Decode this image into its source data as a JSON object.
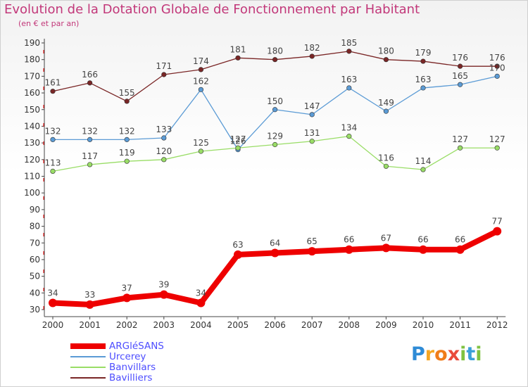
{
  "title": "Evolution de la Dotation Globale de Fonctionnement par Habitant",
  "subtitle": "(en € et par an)",
  "logo": {
    "text": "Proxiti",
    "letters": [
      "P",
      "r",
      "o",
      "x",
      "i",
      "t",
      "i"
    ],
    "colors": [
      "#2e8bd6",
      "#f5a623",
      "#f07d1a",
      "#e94b3c",
      "#7fc241",
      "#3aa0d8",
      "#7fc241"
    ]
  },
  "chart_data": {
    "type": "line",
    "title": "Evolution de la Dotation Globale de Fonctionnement par Habitant",
    "subtitle": "(en € et par an)",
    "x": [
      "2000",
      "2001",
      "2002",
      "2003",
      "2004",
      "2005",
      "2006",
      "2007",
      "2008",
      "2009",
      "2010",
      "2011",
      "2012"
    ],
    "ylim": [
      30,
      190
    ],
    "yticks": [
      30,
      40,
      50,
      60,
      70,
      80,
      90,
      100,
      110,
      120,
      130,
      140,
      150,
      160,
      170,
      180,
      190
    ],
    "grid": false,
    "legend_position": "bottom-left",
    "series": [
      {
        "name": "ARGléSANS",
        "color": "#ee0000",
        "values": [
          34,
          33,
          37,
          39,
          34,
          63,
          64,
          65,
          66,
          67,
          66,
          66,
          77
        ],
        "labels": [
          "34",
          "33",
          "37",
          "39",
          "34",
          "63",
          "64",
          "65",
          "66",
          "67",
          "66",
          "66",
          "77"
        ]
      },
      {
        "name": "Urcerey",
        "color": "#5b9bd5",
        "values": [
          132,
          132,
          132,
          133,
          162,
          126,
          150,
          147,
          163,
          149,
          163,
          165,
          170
        ],
        "labels": [
          "132",
          "132",
          "132",
          "133",
          "162",
          "126",
          "150",
          "147",
          "163",
          "149",
          "163",
          "165",
          "170"
        ]
      },
      {
        "name": "Banvillars",
        "color": "#99dd66",
        "values": [
          113,
          117,
          119,
          120,
          125,
          127,
          129,
          131,
          134,
          116,
          114,
          127,
          127
        ],
        "labels": [
          "113",
          "117",
          "119",
          "120",
          "125",
          "127",
          "129",
          "131",
          "134",
          "116",
          "114",
          "127",
          "127"
        ]
      },
      {
        "name": "Bavilliers",
        "color": "#7a2626",
        "values": [
          161,
          166,
          155,
          171,
          174,
          181,
          180,
          182,
          185,
          180,
          179,
          176,
          176
        ],
        "labels": [
          "161",
          "166",
          "155",
          "171",
          "174",
          "181",
          "180",
          "182",
          "185",
          "180",
          "179",
          "176",
          "176"
        ]
      }
    ]
  }
}
